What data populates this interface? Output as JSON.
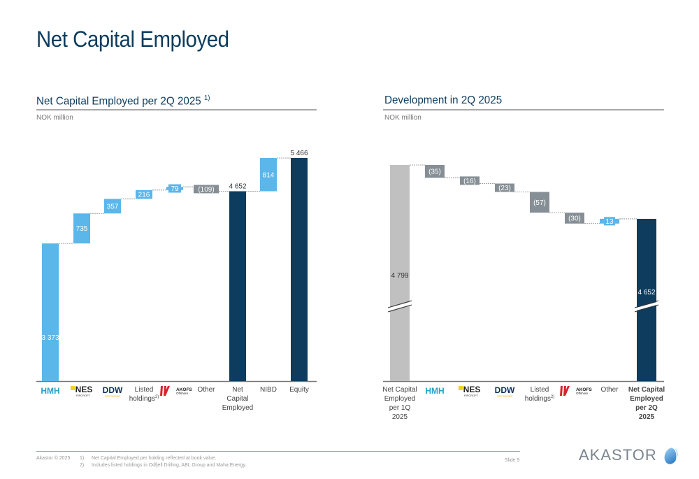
{
  "page": {
    "title": "Net Capital Employed",
    "footer": {
      "copyright": "Akastor © 2025",
      "footnotes": [
        {
          "num": "1)",
          "text": "Net Capital Employed per holding reflected at book value."
        },
        {
          "num": "2)",
          "text": "Includes listed holdings in Odfjell Drilling, ABL Group and Maha Energy."
        }
      ],
      "slide": "Slide 9",
      "logo_text": "AKASTOR"
    }
  },
  "left": {
    "title": "Net Capital Employed per 2Q 2025",
    "title_sup": "1)",
    "unit": "NOK million"
  },
  "right": {
    "title": "Development in 2Q 2025",
    "unit": "NOK million"
  },
  "colors": {
    "positive": "#5bb6ea",
    "negative": "#868f95",
    "total": "#0d3c5e",
    "start": "#c0c0c0"
  },
  "chart_data": [
    {
      "type": "bar",
      "subtype": "waterfall",
      "title": "Net Capital Employed per 2Q 2025",
      "ylabel": "NOK million",
      "categories": [
        "HMH",
        "NES Fircroft",
        "DDW Offshore",
        "Listed holdings",
        "AKOFS Offshore",
        "Other",
        "Net Capital Employed",
        "NIBD",
        "Equity"
      ],
      "category_kinds": [
        "logo",
        "logo",
        "logo",
        "text",
        "logo",
        "text",
        "text",
        "text",
        "text"
      ],
      "category_sup": [
        "",
        "",
        "",
        "2)",
        "",
        "",
        "",
        "",
        ""
      ],
      "values": [
        3373,
        735,
        357,
        216,
        79,
        -109,
        4652,
        814,
        5466
      ],
      "labels": [
        "3 373",
        "735",
        "357",
        "216",
        "79",
        "(109)",
        "4 652",
        "814",
        "5 466"
      ],
      "bar_kinds": [
        "positive",
        "positive",
        "positive",
        "positive",
        "positive",
        "negative",
        "total",
        "positive",
        "total"
      ],
      "ylim": [
        0,
        5466
      ],
      "grid": false,
      "legend": "none"
    },
    {
      "type": "bar",
      "subtype": "waterfall",
      "title": "Development in 2Q 2025",
      "ylabel": "NOK million",
      "categories": [
        "Net Capital Employed per 1Q 2025",
        "HMH",
        "NES Fircroft",
        "DDW Offshore",
        "Listed holdings",
        "AKOFS Offshore",
        "Other",
        "Net Capital Employed per 2Q 2025"
      ],
      "category_kinds": [
        "text",
        "logo",
        "logo",
        "logo",
        "text",
        "logo",
        "text",
        "text"
      ],
      "category_sup": [
        "",
        "",
        "",
        "",
        "2)",
        "",
        "",
        ""
      ],
      "values": [
        4799,
        -35,
        -16,
        -23,
        -57,
        -30,
        13,
        4652
      ],
      "labels": [
        "4 799",
        "(35)",
        "(16)",
        "(23)",
        "(57)",
        "(30)",
        "13",
        "4 652"
      ],
      "bar_kinds": [
        "start",
        "negative",
        "negative",
        "negative",
        "negative",
        "negative",
        "positive",
        "total"
      ],
      "axis_break": true,
      "grid": false,
      "legend": "none"
    }
  ]
}
